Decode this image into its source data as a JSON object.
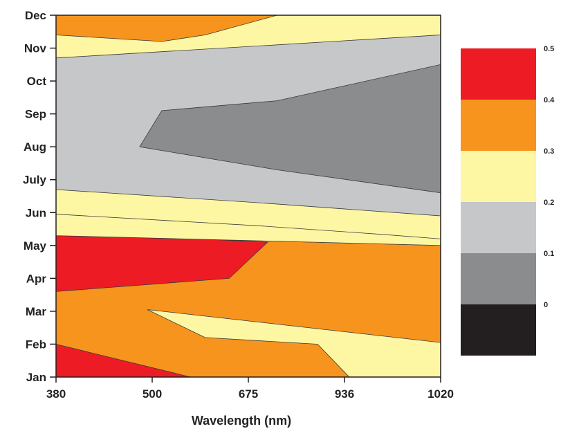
{
  "chart_data": {
    "type": "heatmap",
    "subtype": "filled-contour",
    "title": "",
    "xlabel": "Wavelength (nm)",
    "ylabel": "",
    "x_tick_labels": [
      "380",
      "500",
      "675",
      "936",
      "1020"
    ],
    "y_tick_labels": [
      "Jan",
      "Feb",
      "Mar",
      "Apr",
      "May",
      "Jun",
      "July",
      "Aug",
      "Sep",
      "Oct",
      "Nov",
      "Dec"
    ],
    "colorbar": {
      "tick_labels": [
        "0",
        "0.1",
        "0.2",
        "0.3",
        "0.4",
        "0.5"
      ],
      "levels": [
        {
          "range": [
            0,
            0.1
          ],
          "color": "#231f20"
        },
        {
          "range": [
            0.1,
            0.2
          ],
          "color": "#8a8c8e"
        },
        {
          "range": [
            0.2,
            0.3
          ],
          "color": "#c5c7c9"
        },
        {
          "range": [
            0.3,
            0.4
          ],
          "color": "#fdf6a3"
        },
        {
          "range": [
            0.4,
            0.5
          ],
          "color": "#f7941e"
        },
        {
          "range": [
            0.5,
            0.6
          ],
          "color": "#ed1c24"
        }
      ]
    },
    "regions": [
      {
        "level": "0.3-0.4",
        "color": "#fdf6a3",
        "polygon": [
          [
            0,
            0
          ],
          [
            4,
            0
          ],
          [
            4,
            11
          ],
          [
            0,
            11
          ]
        ]
      },
      {
        "level": "0.4-0.5",
        "color": "#f7941e",
        "polygon": [
          [
            0,
            0
          ],
          [
            3.05,
            0
          ],
          [
            2.72,
            1
          ],
          [
            1.55,
            1.2
          ],
          [
            0.95,
            2.05
          ],
          [
            4,
            1.05
          ],
          [
            4,
            4
          ],
          [
            0,
            4.3
          ]
        ]
      },
      {
        "level": "0.5-0.6",
        "color": "#ed1c24",
        "polygon": [
          [
            0,
            0
          ],
          [
            1.4,
            0
          ],
          [
            0,
            1
          ]
        ]
      },
      {
        "level": "0.5-0.6",
        "color": "#ed1c24",
        "polygon": [
          [
            0,
            2.6
          ],
          [
            1.8,
            3
          ],
          [
            2.2,
            4.1
          ],
          [
            0,
            4.4
          ]
        ]
      },
      {
        "level": "0.3-0.4",
        "color": "#fdf6a3",
        "polygon": [
          [
            0,
            4.3
          ],
          [
            4,
            4
          ],
          [
            4,
            4.2
          ],
          [
            3.38,
            4.34
          ],
          [
            2.1,
            4.6
          ],
          [
            0,
            4.95
          ]
        ]
      },
      {
        "level": "0.2-0.3",
        "color": "#c5c7c9",
        "polygon": [
          [
            0,
            5.7
          ],
          [
            2.1,
            5.3
          ],
          [
            4,
            4.9
          ],
          [
            4,
            10.4
          ],
          [
            2.3,
            10.1
          ],
          [
            0,
            9.7
          ]
        ]
      },
      {
        "level": "0.1-0.2",
        "color": "#8a8c8e",
        "polygon": [
          [
            0.87,
            7
          ],
          [
            1.1,
            8.1
          ],
          [
            2.3,
            8.4
          ],
          [
            4,
            9.5
          ],
          [
            4,
            5.6
          ],
          [
            2.3,
            6.3
          ]
        ]
      },
      {
        "level": "0.4-0.5",
        "color": "#f7941e",
        "polygon": [
          [
            0,
            10.4
          ],
          [
            1.1,
            10.2
          ],
          [
            1.55,
            10.4
          ],
          [
            2.3,
            11
          ],
          [
            0,
            11
          ]
        ]
      }
    ]
  }
}
